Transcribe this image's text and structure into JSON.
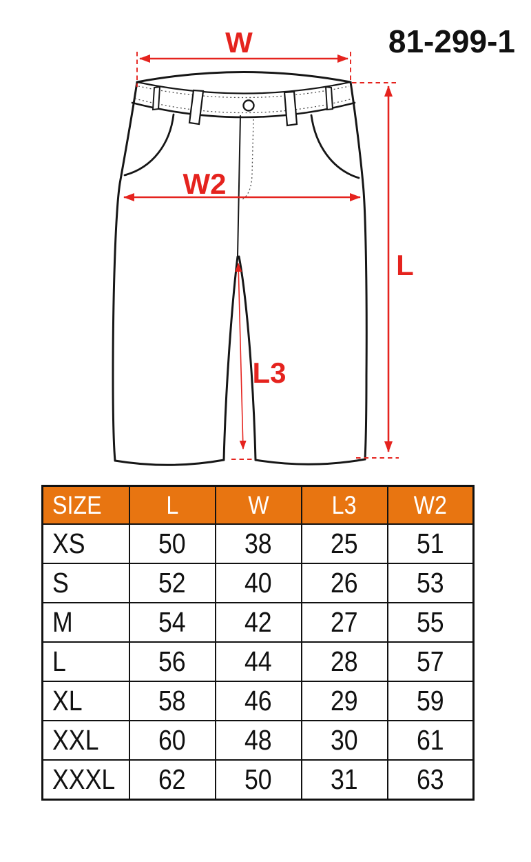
{
  "product_code": "81-299-1",
  "diagram": {
    "description": "technical line drawing of shorts with dimension arrows",
    "dimension_labels": {
      "w": "W",
      "w2": "W2",
      "l": "L",
      "l3": "L3"
    }
  },
  "colors": {
    "dimension_red": "#e5231e",
    "table_header_orange": "#e87511",
    "line_black": "#161616"
  },
  "table": {
    "columns": [
      "SIZE",
      "L",
      "W",
      "L3",
      "W2"
    ],
    "rows": [
      [
        "XS",
        "50",
        "38",
        "25",
        "51"
      ],
      [
        "S",
        "52",
        "40",
        "26",
        "53"
      ],
      [
        "M",
        "54",
        "42",
        "27",
        "55"
      ],
      [
        "L",
        "56",
        "44",
        "28",
        "57"
      ],
      [
        "XL",
        "58",
        "46",
        "29",
        "59"
      ],
      [
        "XXL",
        "60",
        "48",
        "30",
        "61"
      ],
      [
        "XXXL",
        "62",
        "50",
        "31",
        "63"
      ]
    ]
  }
}
